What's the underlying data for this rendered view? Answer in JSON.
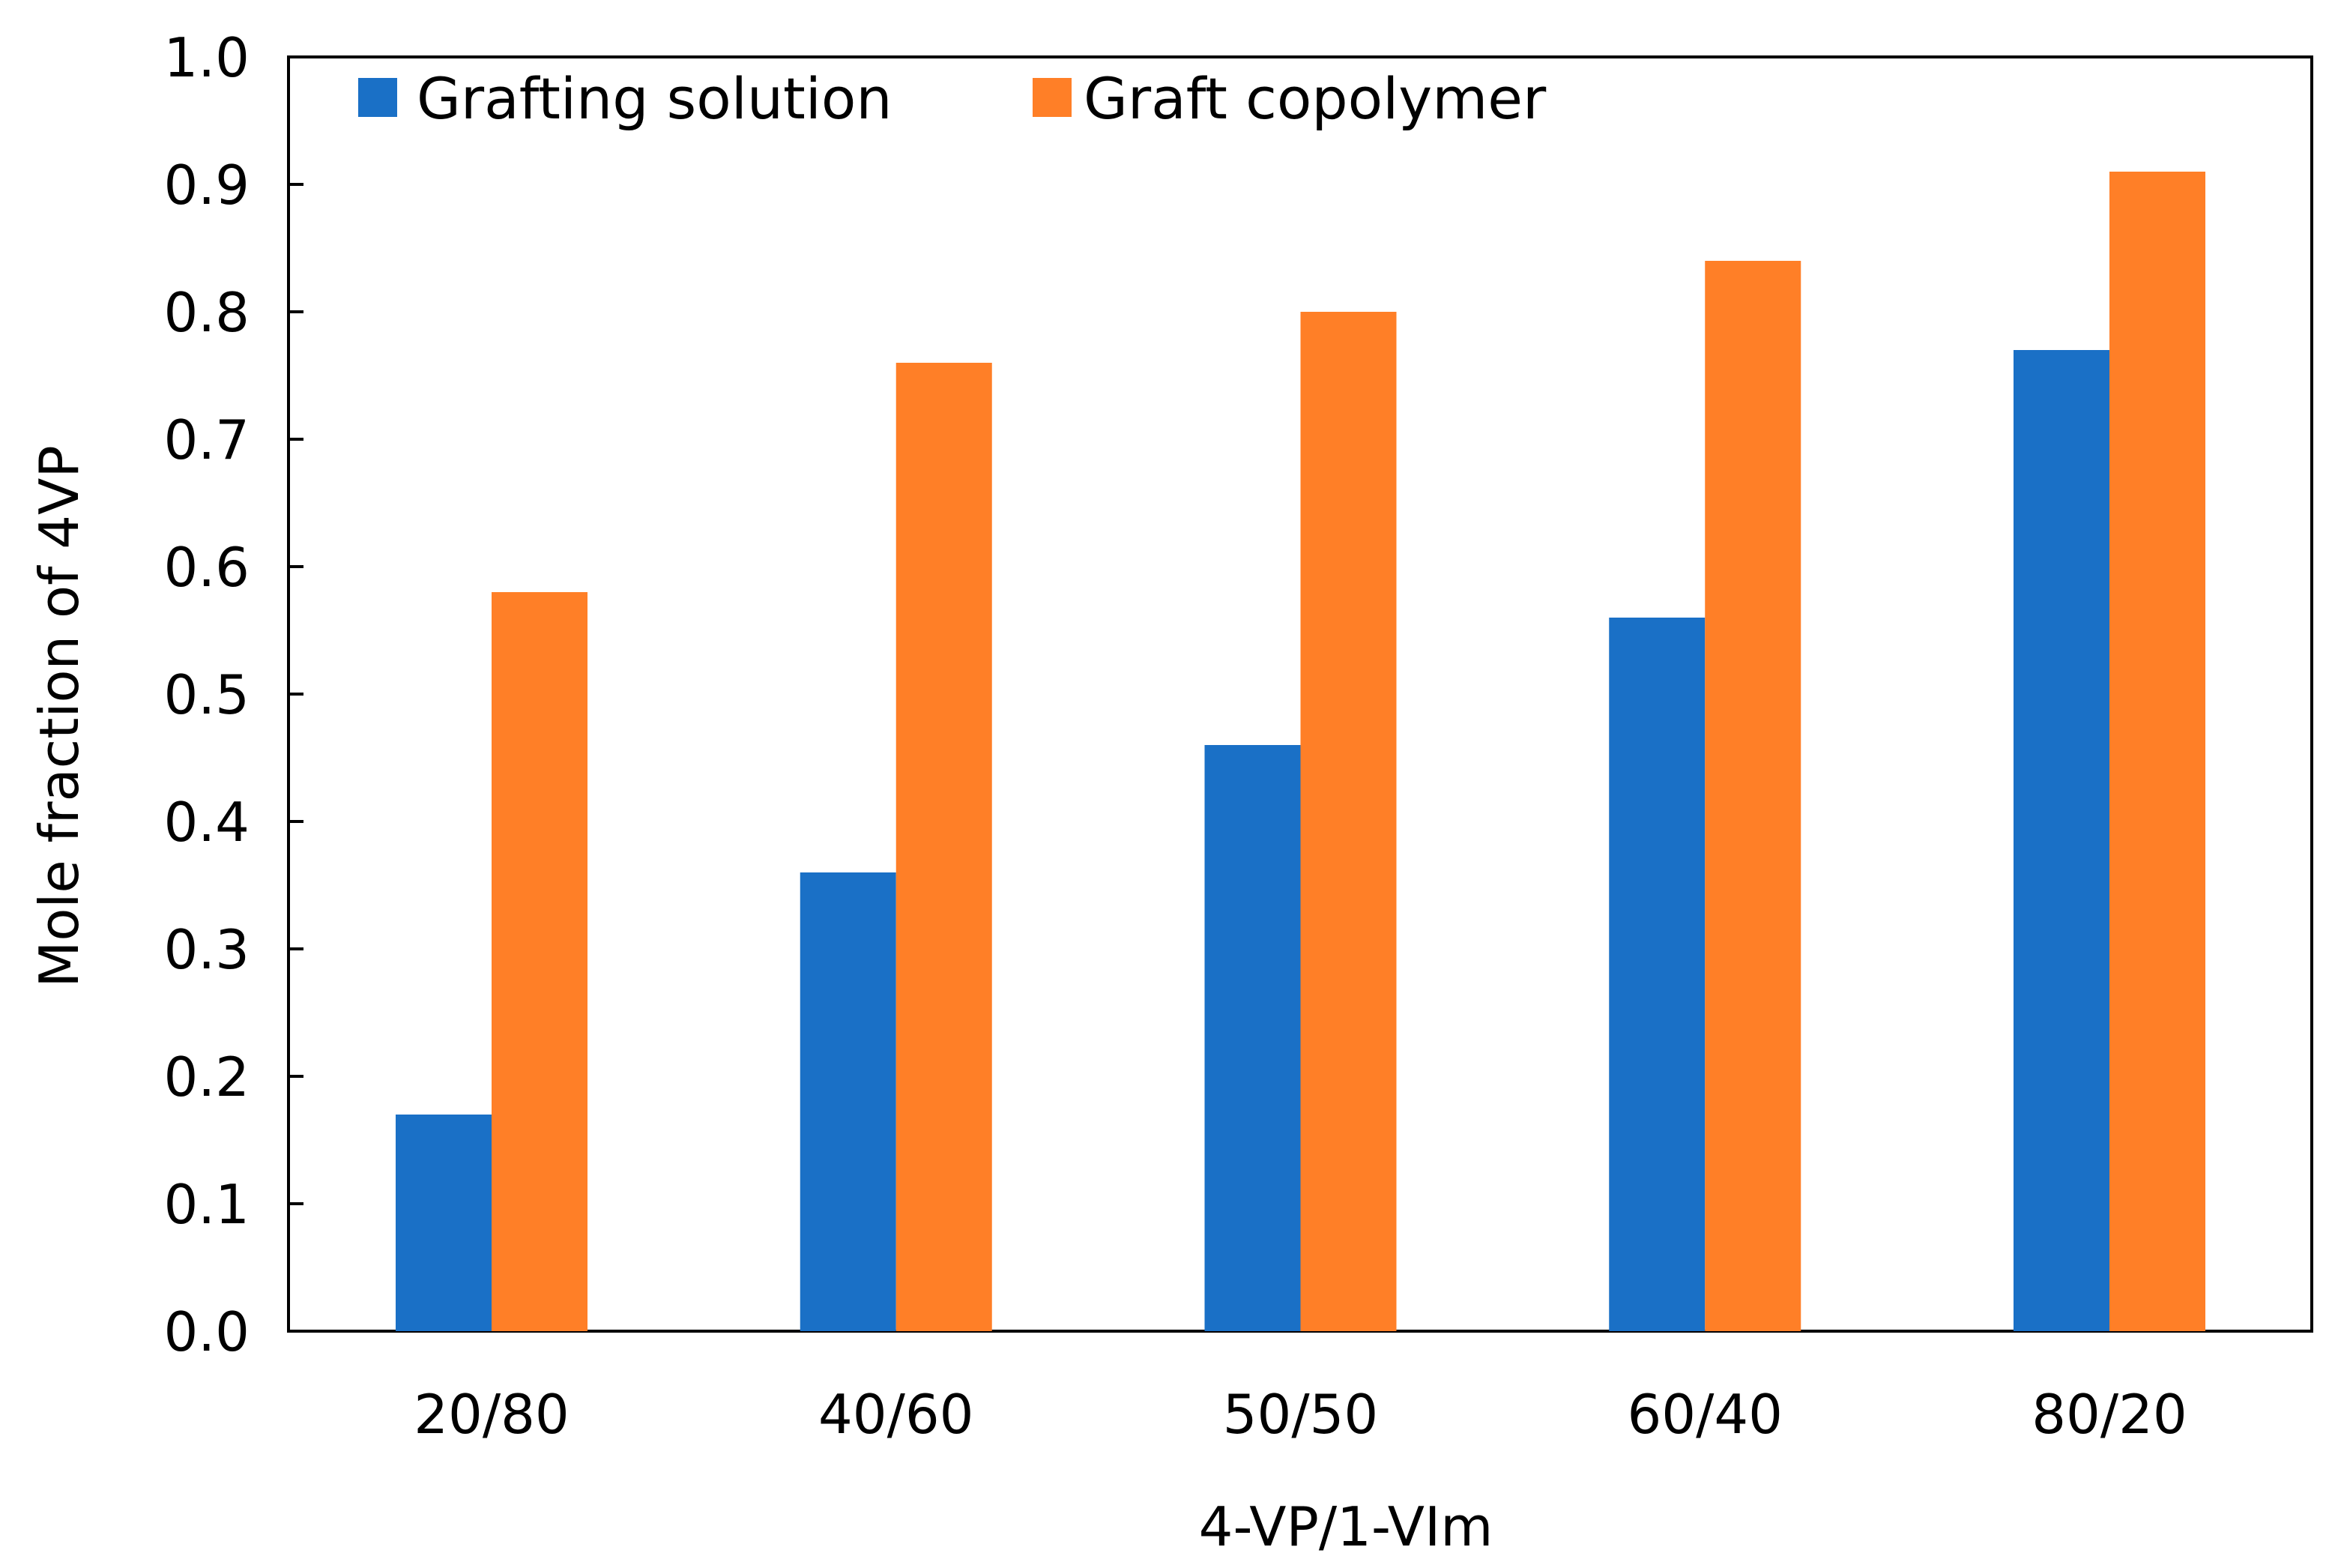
{
  "chart_data": {
    "type": "bar",
    "title": "",
    "xlabel": "4-VP/1-VIm",
    "ylabel": "Mole fraction of 4VP",
    "categories": [
      "20/80",
      "40/60",
      "50/50",
      "60/40",
      "80/20"
    ],
    "series": [
      {
        "name": "Grafting solution",
        "color": "#1a70c6",
        "values": [
          0.17,
          0.36,
          0.46,
          0.56,
          0.77
        ]
      },
      {
        "name": "Graft copolymer",
        "color": "#ff7f27",
        "values": [
          0.58,
          0.76,
          0.8,
          0.84,
          0.91
        ]
      }
    ],
    "ylim": [
      0,
      1.0
    ],
    "yticks": [
      "0.0",
      "0.1",
      "0.2",
      "0.3",
      "0.4",
      "0.5",
      "0.6",
      "0.7",
      "0.8",
      "0.9",
      "1.0"
    ],
    "grid": false,
    "legend_position": "top-left"
  }
}
